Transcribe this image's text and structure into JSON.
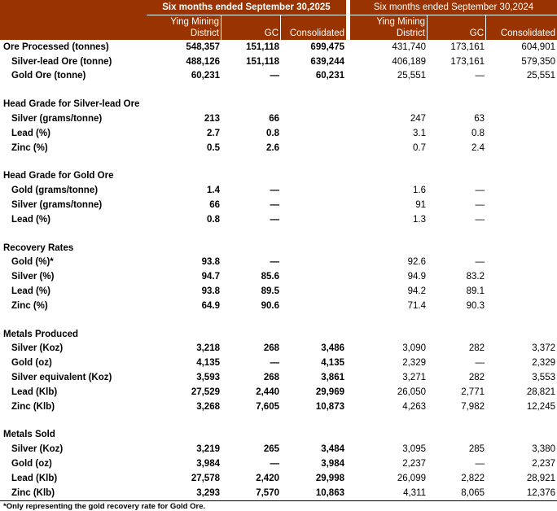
{
  "header": {
    "period_2025": "Six months ended September 30,2025",
    "period_2024": "Six months ended September 30,2024",
    "columns_2025": [
      "Ying Mining District",
      "GC",
      "Consolidated"
    ],
    "columns_2024": [
      "Ying Mining District",
      "GC",
      "Consolidated"
    ]
  },
  "colors": {
    "header_bg": "#993300",
    "header_text": "#ffffff"
  },
  "sections": [
    {
      "title": "",
      "rows": [
        {
          "label": "Ore Processed (tonnes)",
          "indent": false,
          "values": [
            "548,357",
            "151,118",
            "699,475",
            "431,740",
            "173,161",
            "604,901"
          ]
        },
        {
          "label": "Silver-lead Ore (tonne)",
          "indent": true,
          "values": [
            "488,126",
            "151,118",
            "639,244",
            "406,189",
            "173,161",
            "579,350"
          ]
        },
        {
          "label": "Gold Ore (tonne)",
          "indent": true,
          "values": [
            "60,231",
            "—",
            "60,231",
            "25,551",
            "—",
            "25,551"
          ]
        }
      ]
    },
    {
      "title": "Head Grade for Silver-lead Ore",
      "rows": [
        {
          "label": "Silver (grams/tonne)",
          "indent": true,
          "values": [
            "213",
            "66",
            "",
            "247",
            "63",
            ""
          ]
        },
        {
          "label": "Lead (%)",
          "indent": true,
          "values": [
            "2.7",
            "0.8",
            "",
            "3.1",
            "0.8",
            ""
          ]
        },
        {
          "label": "Zinc (%)",
          "indent": true,
          "values": [
            "0.5",
            "2.6",
            "",
            "0.7",
            "2.4",
            ""
          ]
        }
      ]
    },
    {
      "title": "Head Grade for Gold Ore",
      "rows": [
        {
          "label": "Gold (grams/tonne)",
          "indent": true,
          "values": [
            "1.4",
            "—",
            "",
            "1.6",
            "—",
            ""
          ]
        },
        {
          "label": "Silver (grams/tonne)",
          "indent": true,
          "values": [
            "66",
            "—",
            "",
            "91",
            "—",
            ""
          ]
        },
        {
          "label": "Lead (%)",
          "indent": true,
          "values": [
            "0.8",
            "—",
            "",
            "1.3",
            "—",
            ""
          ]
        }
      ]
    },
    {
      "title": "Recovery Rates",
      "rows": [
        {
          "label": "Gold (%)*",
          "indent": true,
          "values": [
            "93.8",
            "—",
            "",
            "92.6",
            "—",
            ""
          ]
        },
        {
          "label": "Silver (%)",
          "indent": true,
          "values": [
            "94.7",
            "85.6",
            "",
            "94.9",
            "83.2",
            ""
          ]
        },
        {
          "label": "Lead (%)",
          "indent": true,
          "values": [
            "93.8",
            "89.5",
            "",
            "94.2",
            "89.1",
            ""
          ]
        },
        {
          "label": "Zinc (%)",
          "indent": true,
          "values": [
            "64.9",
            "90.6",
            "",
            "71.4",
            "90.3",
            ""
          ]
        }
      ]
    },
    {
      "title": "Metals Produced",
      "rows": [
        {
          "label": "Silver (Koz)",
          "indent": true,
          "values": [
            "3,218",
            "268",
            "3,486",
            "3,090",
            "282",
            "3,372"
          ]
        },
        {
          "label": "Gold (oz)",
          "indent": true,
          "values": [
            "4,135",
            "—",
            "4,135",
            "2,329",
            "—",
            "2,329"
          ]
        },
        {
          "label": "Silver equivalent (Koz)",
          "indent": true,
          "values": [
            "3,593",
            "268",
            "3,861",
            "3,271",
            "282",
            "3,553"
          ]
        },
        {
          "label": "Lead (Klb)",
          "indent": true,
          "values": [
            "27,529",
            "2,440",
            "29,969",
            "26,050",
            "2,771",
            "28,821"
          ]
        },
        {
          "label": "Zinc (Klb)",
          "indent": true,
          "values": [
            "3,268",
            "7,605",
            "10,873",
            "4,263",
            "7,982",
            "12,245"
          ]
        }
      ]
    },
    {
      "title": "Metals Sold",
      "rows": [
        {
          "label": "Silver (Koz)",
          "indent": true,
          "values": [
            "3,219",
            "265",
            "3,484",
            "3,095",
            "285",
            "3,380"
          ]
        },
        {
          "label": "Gold (oz)",
          "indent": true,
          "values": [
            "3,984",
            "—",
            "3,984",
            "2,237",
            "—",
            "2,237"
          ]
        },
        {
          "label": "Lead (Klb)",
          "indent": true,
          "values": [
            "27,578",
            "2,420",
            "29,998",
            "26,099",
            "2,822",
            "28,921"
          ]
        },
        {
          "label": "Zinc (Klb)",
          "indent": true,
          "values": [
            "3,293",
            "7,570",
            "10,863",
            "4,311",
            "8,065",
            "12,376"
          ]
        }
      ]
    }
  ],
  "footnote": "*Only representing the gold recovery rate for Gold Ore."
}
